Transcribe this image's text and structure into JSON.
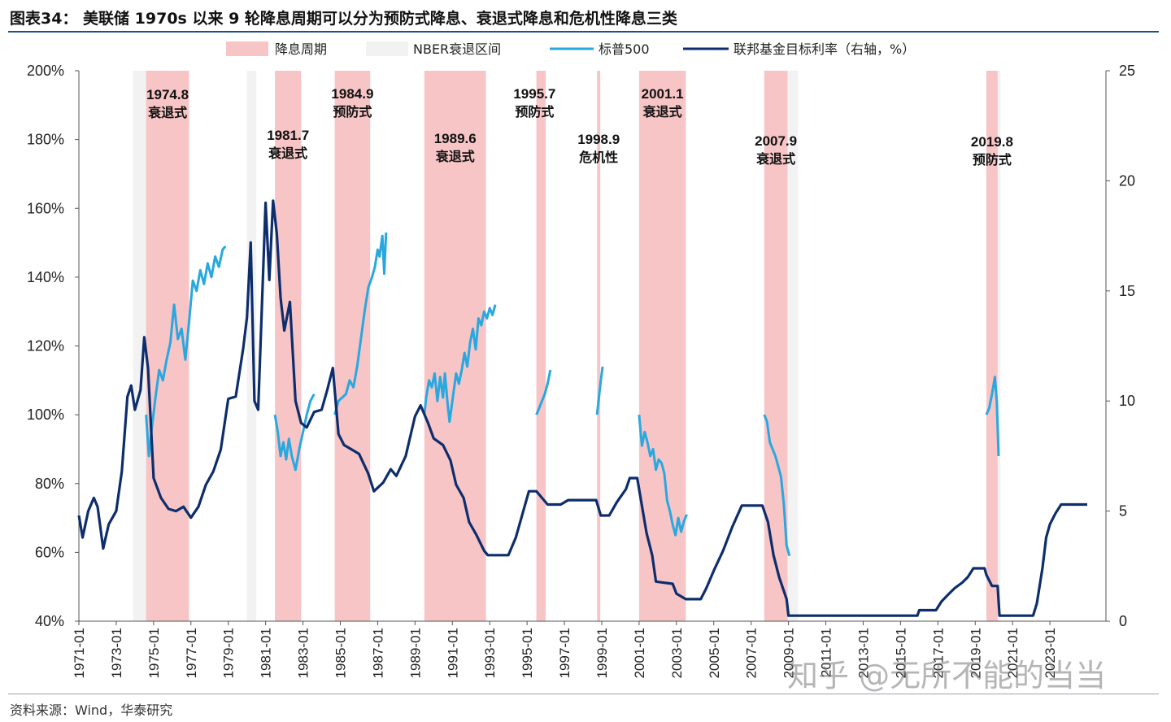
{
  "title": "图表34： 美联储 1970s 以来 9 轮降息周期可以分为预防式降息、衰退式降息和危机性降息三类",
  "source": "资料来源：Wind，华泰研究",
  "watermark": "知乎 @无所不能的当当",
  "colors": {
    "cut_band": "#f7c5c6",
    "nber_band": "#f2f2f2",
    "sp500": "#29a8e0",
    "fed_funds": "#0d2d6c",
    "title_rule": "#1f4e8c"
  },
  "chart_data": {
    "type": "line",
    "x_ticks": [
      "1971-01",
      "1973-01",
      "1975-01",
      "1977-01",
      "1979-01",
      "1981-01",
      "1983-01",
      "1985-01",
      "1987-01",
      "1989-01",
      "1991-01",
      "1993-01",
      "1995-01",
      "1997-01",
      "1999-01",
      "2001-01",
      "2003-01",
      "2005-01",
      "2007-01",
      "2009-01",
      "2011-01",
      "2013-01",
      "2015-01",
      "2017-01",
      "2019-01",
      "2021-01",
      "2023-01"
    ],
    "x_range": [
      1971.0,
      2026.0
    ],
    "y_left": {
      "ticks": [
        "40%",
        "60%",
        "80%",
        "100%",
        "120%",
        "140%",
        "160%",
        "180%",
        "200%"
      ],
      "range": [
        40,
        200
      ]
    },
    "y_right": {
      "ticks": [
        "0",
        "5",
        "10",
        "15",
        "20",
        "25"
      ],
      "range": [
        0,
        25
      ]
    },
    "legend": [
      "降息周期",
      "NBER衰退区间",
      "标普500",
      "联邦基金目标利率（右轴，%）"
    ],
    "nber_recessions": [
      [
        1973.9,
        1975.25
      ],
      [
        1980.0,
        1980.5
      ],
      [
        1981.5,
        1982.9
      ],
      [
        1990.5,
        1991.2
      ],
      [
        2001.2,
        2001.9
      ],
      [
        2007.9,
        2009.5
      ],
      [
        2020.1,
        2020.35
      ]
    ],
    "cut_cycles": [
      {
        "start": 1974.6,
        "end": 1976.9,
        "date": "1974.8",
        "type": "衰退式"
      },
      {
        "start": 1981.5,
        "end": 1982.9,
        "date": "1981.7",
        "type": "衰退式"
      },
      {
        "start": 1984.7,
        "end": 1986.6,
        "date": "1984.9",
        "type": "预防式"
      },
      {
        "start": 1989.5,
        "end": 1992.8,
        "date": "1989.6",
        "type": "衰退式"
      },
      {
        "start": 1995.5,
        "end": 1996.0,
        "date": "1995.7",
        "type": "预防式"
      },
      {
        "start": 1998.75,
        "end": 1998.92,
        "date": "1998.9",
        "type": "危机性"
      },
      {
        "start": 2001.0,
        "end": 2003.5,
        "date": "2001.1",
        "type": "衰退式"
      },
      {
        "start": 2007.7,
        "end": 2008.95,
        "date": "2007.9",
        "type": "衰退式"
      },
      {
        "start": 2019.6,
        "end": 2020.2,
        "date": "2019.8",
        "type": "预防式"
      }
    ],
    "series": [
      {
        "name": "标普500",
        "axis": "left",
        "segments": [
          [
            [
              1974.6,
              100
            ],
            [
              1974.75,
              88
            ],
            [
              1974.9,
              96
            ],
            [
              1975.1,
              105
            ],
            [
              1975.3,
              113
            ],
            [
              1975.5,
              110
            ],
            [
              1975.7,
              116
            ],
            [
              1975.9,
              121
            ],
            [
              1976.1,
              132
            ],
            [
              1976.3,
              122
            ],
            [
              1976.5,
              125
            ],
            [
              1976.7,
              116
            ],
            [
              1976.9,
              127
            ],
            [
              1977.1,
              139
            ],
            [
              1977.3,
              136
            ],
            [
              1977.5,
              142
            ],
            [
              1977.7,
              138
            ],
            [
              1977.9,
              144
            ],
            [
              1978.1,
              140
            ],
            [
              1978.3,
              146
            ],
            [
              1978.5,
              143
            ],
            [
              1978.7,
              148
            ],
            [
              1978.85,
              149
            ]
          ],
          [
            [
              1981.5,
              100
            ],
            [
              1981.65,
              95
            ],
            [
              1981.8,
              88
            ],
            [
              1981.95,
              92
            ],
            [
              1982.1,
              87
            ],
            [
              1982.25,
              93
            ],
            [
              1982.4,
              88
            ],
            [
              1982.6,
              84
            ],
            [
              1982.8,
              90
            ],
            [
              1983.0,
              95
            ],
            [
              1983.2,
              100
            ],
            [
              1983.4,
              104
            ],
            [
              1983.6,
              106
            ]
          ],
          [
            [
              1984.7,
              100
            ],
            [
              1984.9,
              104
            ],
            [
              1985.1,
              105
            ],
            [
              1985.3,
              106
            ],
            [
              1985.5,
              110
            ],
            [
              1985.7,
              108
            ],
            [
              1985.9,
              114
            ],
            [
              1986.1,
              122
            ],
            [
              1986.3,
              130
            ],
            [
              1986.5,
              137
            ],
            [
              1986.7,
              140
            ],
            [
              1986.85,
              143
            ],
            [
              1987.0,
              148
            ],
            [
              1987.1,
              146
            ],
            [
              1987.25,
              152
            ],
            [
              1987.35,
              141
            ],
            [
              1987.45,
              153
            ]
          ],
          [
            [
              1989.5,
              100
            ],
            [
              1989.6,
              105
            ],
            [
              1989.75,
              110
            ],
            [
              1989.9,
              108
            ],
            [
              1990.05,
              112
            ],
            [
              1990.2,
              104
            ],
            [
              1990.35,
              111
            ],
            [
              1990.5,
              105
            ],
            [
              1990.6,
              112
            ],
            [
              1990.75,
              103
            ],
            [
              1990.85,
              98
            ],
            [
              1991.0,
              104
            ],
            [
              1991.2,
              112
            ],
            [
              1991.35,
              109
            ],
            [
              1991.5,
              113
            ],
            [
              1991.65,
              118
            ],
            [
              1991.8,
              114
            ],
            [
              1991.95,
              121
            ],
            [
              1992.1,
              125
            ],
            [
              1992.25,
              119
            ],
            [
              1992.4,
              128
            ],
            [
              1992.55,
              126
            ],
            [
              1992.7,
              130
            ],
            [
              1992.85,
              128
            ],
            [
              1993.0,
              131
            ],
            [
              1993.15,
              129
            ],
            [
              1993.3,
              132
            ]
          ],
          [
            [
              1995.5,
              100
            ],
            [
              1995.65,
              102
            ],
            [
              1995.8,
              104
            ],
            [
              1995.95,
              106
            ],
            [
              1996.1,
              109
            ],
            [
              1996.25,
              113
            ]
          ],
          [
            [
              1998.75,
              100
            ],
            [
              1998.85,
              105
            ],
            [
              1998.95,
              110
            ],
            [
              1999.05,
              114
            ]
          ],
          [
            [
              2001.0,
              100
            ],
            [
              2001.15,
              91
            ],
            [
              2001.3,
              95
            ],
            [
              2001.45,
              92
            ],
            [
              2001.6,
              88
            ],
            [
              2001.75,
              90
            ],
            [
              2001.9,
              84
            ],
            [
              2002.05,
              87
            ],
            [
              2002.2,
              86
            ],
            [
              2002.35,
              83
            ],
            [
              2002.5,
              75
            ],
            [
              2002.65,
              72
            ],
            [
              2002.8,
              68
            ],
            [
              2002.95,
              65
            ],
            [
              2003.1,
              70
            ],
            [
              2003.25,
              66
            ],
            [
              2003.4,
              69
            ],
            [
              2003.55,
              71
            ]
          ],
          [
            [
              2007.7,
              100
            ],
            [
              2007.85,
              98
            ],
            [
              2008.0,
              92
            ],
            [
              2008.15,
              90
            ],
            [
              2008.3,
              88
            ],
            [
              2008.45,
              85
            ],
            [
              2008.6,
              82
            ],
            [
              2008.75,
              74
            ],
            [
              2008.9,
              62
            ],
            [
              2009.05,
              59
            ]
          ],
          [
            [
              2019.6,
              100
            ],
            [
              2019.75,
              102
            ],
            [
              2019.9,
              106
            ],
            [
              2020.05,
              111
            ],
            [
              2020.15,
              104
            ],
            [
              2020.25,
              88
            ]
          ]
        ]
      },
      {
        "name": "联邦基金目标利率（右轴，%）",
        "axis": "right",
        "points": [
          [
            1971.0,
            4.8
          ],
          [
            1971.2,
            3.8
          ],
          [
            1971.5,
            5.0
          ],
          [
            1971.8,
            5.6
          ],
          [
            1972.0,
            5.2
          ],
          [
            1972.3,
            3.3
          ],
          [
            1972.6,
            4.4
          ],
          [
            1973.0,
            5.0
          ],
          [
            1973.3,
            6.8
          ],
          [
            1973.6,
            10.2
          ],
          [
            1973.8,
            10.7
          ],
          [
            1974.0,
            9.6
          ],
          [
            1974.3,
            10.5
          ],
          [
            1974.5,
            12.9
          ],
          [
            1974.7,
            11.5
          ],
          [
            1975.0,
            6.5
          ],
          [
            1975.4,
            5.6
          ],
          [
            1975.8,
            5.1
          ],
          [
            1976.2,
            5.0
          ],
          [
            1976.6,
            5.2
          ],
          [
            1977.0,
            4.7
          ],
          [
            1977.4,
            5.2
          ],
          [
            1977.8,
            6.2
          ],
          [
            1978.2,
            6.8
          ],
          [
            1978.6,
            7.8
          ],
          [
            1979.0,
            10.1
          ],
          [
            1979.4,
            10.2
          ],
          [
            1979.8,
            12.4
          ],
          [
            1980.0,
            13.8
          ],
          [
            1980.2,
            17.2
          ],
          [
            1980.4,
            10.0
          ],
          [
            1980.6,
            9.6
          ],
          [
            1980.9,
            16.6
          ],
          [
            1981.0,
            19.0
          ],
          [
            1981.2,
            15.5
          ],
          [
            1981.4,
            19.1
          ],
          [
            1981.6,
            17.6
          ],
          [
            1981.8,
            14.7
          ],
          [
            1982.0,
            13.2
          ],
          [
            1982.3,
            14.5
          ],
          [
            1982.6,
            10.0
          ],
          [
            1982.9,
            9.0
          ],
          [
            1983.2,
            8.8
          ],
          [
            1983.6,
            9.5
          ],
          [
            1984.0,
            9.6
          ],
          [
            1984.3,
            10.5
          ],
          [
            1984.6,
            11.5
          ],
          [
            1984.9,
            8.5
          ],
          [
            1985.2,
            8.0
          ],
          [
            1985.6,
            7.8
          ],
          [
            1986.0,
            7.6
          ],
          [
            1986.5,
            6.7
          ],
          [
            1986.8,
            5.9
          ],
          [
            1987.3,
            6.3
          ],
          [
            1987.7,
            6.9
          ],
          [
            1988.0,
            6.6
          ],
          [
            1988.5,
            7.5
          ],
          [
            1989.0,
            9.3
          ],
          [
            1989.3,
            9.8
          ],
          [
            1989.7,
            9.0
          ],
          [
            1990.0,
            8.3
          ],
          [
            1990.5,
            8.0
          ],
          [
            1990.9,
            7.3
          ],
          [
            1991.2,
            6.2
          ],
          [
            1991.6,
            5.6
          ],
          [
            1991.9,
            4.5
          ],
          [
            1992.3,
            3.9
          ],
          [
            1992.7,
            3.2
          ],
          [
            1992.9,
            3.0
          ],
          [
            1993.5,
            3.0
          ],
          [
            1994.0,
            3.0
          ],
          [
            1994.4,
            3.8
          ],
          [
            1994.8,
            5.0
          ],
          [
            1995.1,
            5.9
          ],
          [
            1995.5,
            5.9
          ],
          [
            1995.8,
            5.6
          ],
          [
            1996.1,
            5.3
          ],
          [
            1996.8,
            5.3
          ],
          [
            1997.2,
            5.5
          ],
          [
            1998.0,
            5.5
          ],
          [
            1998.7,
            5.5
          ],
          [
            1998.95,
            4.8
          ],
          [
            1999.4,
            4.8
          ],
          [
            1999.8,
            5.4
          ],
          [
            2000.3,
            6.0
          ],
          [
            2000.5,
            6.5
          ],
          [
            2000.9,
            6.5
          ],
          [
            2001.1,
            5.5
          ],
          [
            2001.4,
            4.0
          ],
          [
            2001.7,
            3.0
          ],
          [
            2001.9,
            1.8
          ],
          [
            2002.3,
            1.75
          ],
          [
            2002.8,
            1.7
          ],
          [
            2003.0,
            1.25
          ],
          [
            2003.5,
            1.0
          ],
          [
            2004.3,
            1.0
          ],
          [
            2004.6,
            1.5
          ],
          [
            2005.0,
            2.3
          ],
          [
            2005.5,
            3.2
          ],
          [
            2006.0,
            4.3
          ],
          [
            2006.5,
            5.25
          ],
          [
            2007.6,
            5.25
          ],
          [
            2007.9,
            4.5
          ],
          [
            2008.2,
            3.0
          ],
          [
            2008.5,
            2.0
          ],
          [
            2008.9,
            1.0
          ],
          [
            2009.0,
            0.25
          ],
          [
            2015.9,
            0.25
          ],
          [
            2016.0,
            0.5
          ],
          [
            2016.9,
            0.5
          ],
          [
            2017.2,
            0.9
          ],
          [
            2017.6,
            1.25
          ],
          [
            2017.9,
            1.5
          ],
          [
            2018.3,
            1.75
          ],
          [
            2018.6,
            2.0
          ],
          [
            2018.9,
            2.4
          ],
          [
            2019.5,
            2.4
          ],
          [
            2019.6,
            2.1
          ],
          [
            2019.9,
            1.6
          ],
          [
            2020.2,
            1.6
          ],
          [
            2020.3,
            0.25
          ],
          [
            2022.1,
            0.25
          ],
          [
            2022.3,
            0.8
          ],
          [
            2022.6,
            2.4
          ],
          [
            2022.8,
            3.8
          ],
          [
            2023.0,
            4.4
          ],
          [
            2023.3,
            4.9
          ],
          [
            2023.6,
            5.3
          ],
          [
            2024.6,
            5.3
          ],
          [
            2025.0,
            5.3
          ]
        ]
      }
    ]
  }
}
